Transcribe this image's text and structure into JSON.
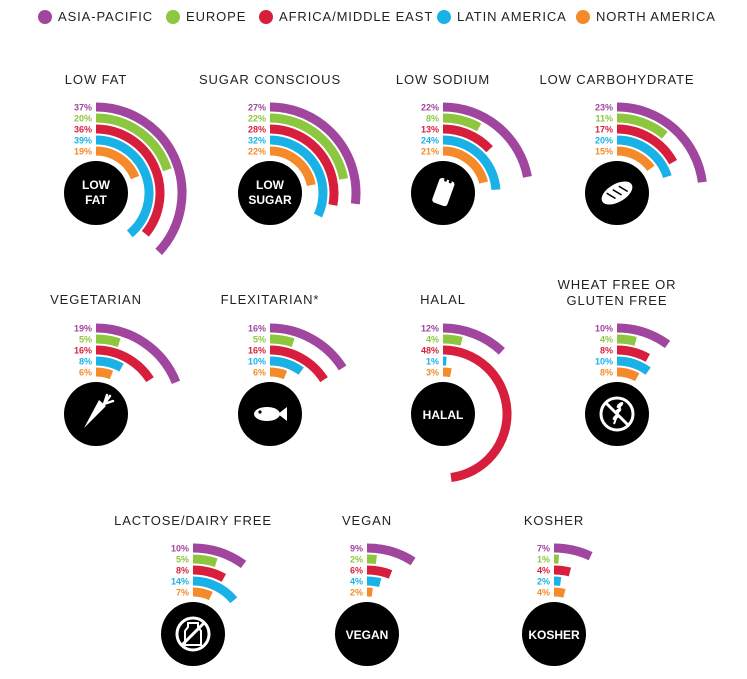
{
  "legend": [
    {
      "name": "ASIA-PACIFIC",
      "color": "#a0469e"
    },
    {
      "name": "EUROPE",
      "color": "#8dc63f"
    },
    {
      "name": "AFRICA/MIDDLE EAST",
      "color": "#d71f3d"
    },
    {
      "name": "LATIN AMERICA",
      "color": "#1ab2e6"
    },
    {
      "name": "NORTH AMERICA",
      "color": "#f58a2a"
    }
  ],
  "chart_data": [
    {
      "type": "radial-bar",
      "title": [
        "LOW FAT"
      ],
      "icon": "low-fat",
      "icon_text": [
        "LOW",
        "FAT"
      ],
      "series": [
        "ASIA-PACIFIC",
        "EUROPE",
        "AFRICA/MIDDLE EAST",
        "LATIN AMERICA",
        "NORTH AMERICA"
      ],
      "values": [
        37,
        20,
        36,
        39,
        19
      ],
      "labels": [
        "37%",
        "20%",
        "36%",
        "39%",
        "19%"
      ]
    },
    {
      "type": "radial-bar",
      "title": [
        "SUGAR CONSCIOUS"
      ],
      "icon": "low-sugar",
      "icon_text": [
        "LOW",
        "SUGAR"
      ],
      "series": [
        "ASIA-PACIFIC",
        "EUROPE",
        "AFRICA/MIDDLE EAST",
        "LATIN AMERICA",
        "NORTH AMERICA"
      ],
      "values": [
        27,
        22,
        28,
        32,
        22
      ],
      "labels": [
        "27%",
        "22%",
        "28%",
        "32%",
        "22%"
      ]
    },
    {
      "type": "radial-bar",
      "title": [
        "LOW SODIUM"
      ],
      "icon": "salt-shaker-icon",
      "icon_text": [],
      "series": [
        "ASIA-PACIFIC",
        "EUROPE",
        "AFRICA/MIDDLE EAST",
        "LATIN AMERICA",
        "NORTH AMERICA"
      ],
      "values": [
        22,
        8,
        13,
        24,
        21
      ],
      "labels": [
        "22%",
        "8%",
        "13%",
        "24%",
        "21%"
      ]
    },
    {
      "type": "radial-bar",
      "title": [
        "LOW CARBOHYDRATE"
      ],
      "icon": "bread-icon",
      "icon_text": [],
      "series": [
        "ASIA-PACIFIC",
        "EUROPE",
        "AFRICA/MIDDLE EAST",
        "LATIN AMERICA",
        "NORTH AMERICA"
      ],
      "values": [
        23,
        11,
        17,
        20,
        15
      ],
      "labels": [
        "23%",
        "11%",
        "17%",
        "20%",
        "15%"
      ]
    },
    {
      "type": "radial-bar",
      "title": [
        "VEGETARIAN"
      ],
      "icon": "carrot-icon",
      "icon_text": [],
      "series": [
        "ASIA-PACIFIC",
        "EUROPE",
        "AFRICA/MIDDLE EAST",
        "LATIN AMERICA",
        "NORTH AMERICA"
      ],
      "values": [
        19,
        5,
        16,
        8,
        6
      ],
      "labels": [
        "19%",
        "5%",
        "16%",
        "8%",
        "6%"
      ]
    },
    {
      "type": "radial-bar",
      "title": [
        "FLEXITARIAN*"
      ],
      "icon": "fish-icon",
      "icon_text": [],
      "series": [
        "ASIA-PACIFIC",
        "EUROPE",
        "AFRICA/MIDDLE EAST",
        "LATIN AMERICA",
        "NORTH AMERICA"
      ],
      "values": [
        16,
        5,
        16,
        10,
        6
      ],
      "labels": [
        "16%",
        "5%",
        "16%",
        "10%",
        "6%"
      ]
    },
    {
      "type": "radial-bar",
      "title": [
        "HALAL"
      ],
      "icon": "halal",
      "icon_text": [
        "HALAL"
      ],
      "series": [
        "ASIA-PACIFIC",
        "EUROPE",
        "AFRICA/MIDDLE EAST",
        "LATIN AMERICA",
        "NORTH AMERICA"
      ],
      "values": [
        12,
        4,
        48,
        1,
        3
      ],
      "labels": [
        "12%",
        "4%",
        "48%",
        "1%",
        "3%"
      ]
    },
    {
      "type": "radial-bar",
      "title": [
        "WHEAT FREE OR",
        "GLUTEN FREE"
      ],
      "icon": "no-wheat-icon",
      "icon_text": [],
      "series": [
        "ASIA-PACIFIC",
        "EUROPE",
        "AFRICA/MIDDLE EAST",
        "LATIN AMERICA",
        "NORTH AMERICA"
      ],
      "values": [
        10,
        4,
        8,
        10,
        8
      ],
      "labels": [
        "10%",
        "4%",
        "8%",
        "10%",
        "8%"
      ]
    },
    {
      "type": "radial-bar",
      "title": [
        "LACTOSE/DAIRY FREE"
      ],
      "icon": "no-milk-icon",
      "icon_text": [],
      "series": [
        "ASIA-PACIFIC",
        "EUROPE",
        "AFRICA/MIDDLE EAST",
        "LATIN AMERICA",
        "NORTH AMERICA"
      ],
      "values": [
        10,
        5,
        8,
        14,
        7
      ],
      "labels": [
        "10%",
        "5%",
        "8%",
        "14%",
        "7%"
      ]
    },
    {
      "type": "radial-bar",
      "title": [
        "VEGAN"
      ],
      "icon": "vegan",
      "icon_text": [
        "VEGAN"
      ],
      "series": [
        "ASIA-PACIFIC",
        "EUROPE",
        "AFRICA/MIDDLE EAST",
        "LATIN AMERICA",
        "NORTH AMERICA"
      ],
      "values": [
        9,
        2,
        6,
        4,
        2
      ],
      "labels": [
        "9%",
        "2%",
        "6%",
        "4%",
        "2%"
      ]
    },
    {
      "type": "radial-bar",
      "title": [
        "KOSHER"
      ],
      "icon": "kosher",
      "icon_text": [
        "KOSHER"
      ],
      "series": [
        "ASIA-PACIFIC",
        "EUROPE",
        "AFRICA/MIDDLE EAST",
        "LATIN AMERICA",
        "NORTH AMERICA"
      ],
      "values": [
        7,
        1,
        4,
        2,
        4
      ],
      "labels": [
        "7%",
        "1%",
        "4%",
        "2%",
        "4%"
      ]
    }
  ]
}
